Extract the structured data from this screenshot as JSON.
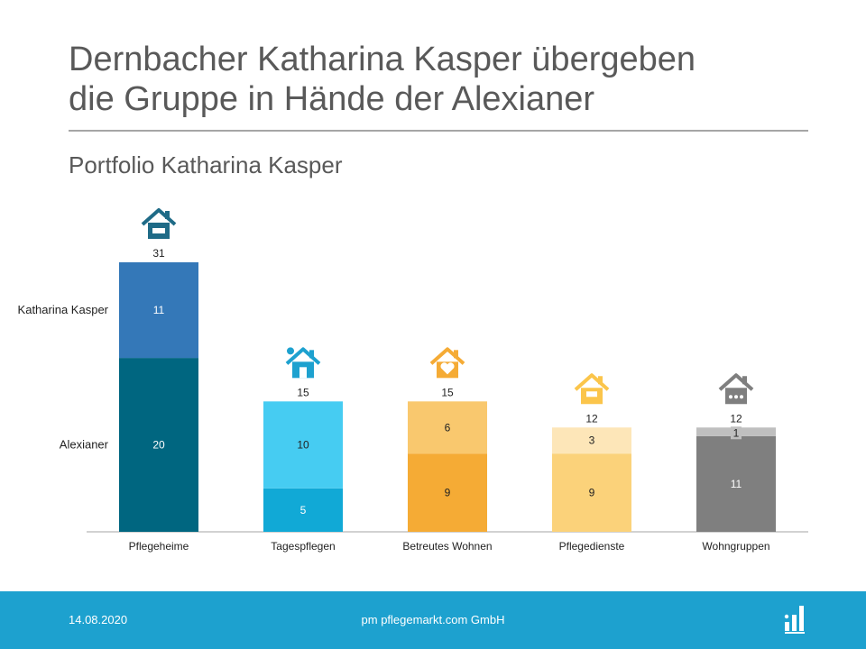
{
  "title_line1": "Dernbacher Katharina Kasper übergeben",
  "title_line2": "die Gruppe in Hände der Alexianer",
  "subtitle": "Portfolio Katharina Kasper",
  "footer": {
    "date": "14.08.2020",
    "company": "pm pflegemarkt.com GmbH"
  },
  "chart_data": {
    "type": "bar",
    "stacked": true,
    "categories": [
      "Pflegeheime",
      "Tagespflegen",
      "Betreutes Wohnen",
      "Pflegedienste",
      "Wohngruppen"
    ],
    "series": [
      {
        "name": "Alexianer",
        "values": [
          20,
          5,
          9,
          9,
          11
        ]
      },
      {
        "name": "Katharina Kasper",
        "values": [
          11,
          10,
          6,
          3,
          1
        ]
      }
    ],
    "totals": [
      31,
      15,
      15,
      12,
      12
    ],
    "icons": [
      "nursing-home-icon",
      "day-care-icon",
      "assisted-living-icon",
      "care-service-icon",
      "shared-housing-icon"
    ],
    "colors": {
      "Pflegeheime": [
        "#006680",
        "#3478b8"
      ],
      "Tagespflegen": [
        "#11a9d6",
        "#46ccf2"
      ],
      "Betreutes Wohnen": [
        "#f5ab35",
        "#f9c86e"
      ],
      "Pflegedienste": [
        "#fbd27a",
        "#fde6b8"
      ],
      "Wohngruppen": [
        "#7f7f7f",
        "#bfbfbf"
      ]
    },
    "icon_colors": [
      "#1f6b87",
      "#1da1cf",
      "#f5ab35",
      "#fbc54b",
      "#7f7f7f"
    ],
    "ylim": [
      0,
      31
    ],
    "grid": false,
    "legend": "left-side-labels"
  }
}
